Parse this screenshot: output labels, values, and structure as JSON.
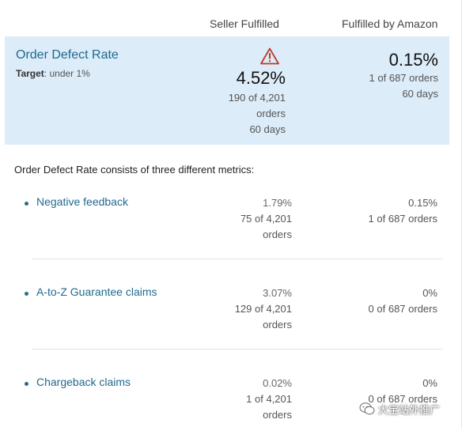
{
  "columns": {
    "seller": "Seller Fulfilled",
    "fba": "Fulfilled by Amazon"
  },
  "odr": {
    "title": "Order Defect Rate",
    "target_label": "Target",
    "target_value": ": under 1%",
    "seller": {
      "rate": "4.52%",
      "count": "190 of 4,201",
      "unit": "orders",
      "period": "60 days",
      "status_icon": "warning-icon"
    },
    "fba": {
      "rate": "0.15%",
      "count": "1 of 687 orders",
      "period": "60 days"
    }
  },
  "intro": "Order Defect Rate consists of three different metrics:",
  "metrics": [
    {
      "label": "Negative feedback",
      "seller_pct": "1.79%",
      "seller_count": "75 of 4,201",
      "seller_unit": "orders",
      "fba_pct": "0.15%",
      "fba_count": "1 of 687 orders"
    },
    {
      "label": "A-to-Z Guarantee claims",
      "seller_pct": "3.07%",
      "seller_count": "129 of 4,201",
      "seller_unit": "orders",
      "fba_pct": "0%",
      "fba_count": "0 of 687 orders"
    },
    {
      "label": "Chargeback claims",
      "seller_pct": "0.02%",
      "seller_count": "1 of 4,201",
      "seller_unit": "orders",
      "fba_pct": "0%",
      "fba_count": "0 of 687 orders"
    }
  ],
  "watermark": {
    "text": "大宝站外推广",
    "icon": "wechat-icon"
  },
  "colors": {
    "highlight_bg": "#dcecf8",
    "link": "#1f6a8f",
    "warning": "#c0392b"
  }
}
